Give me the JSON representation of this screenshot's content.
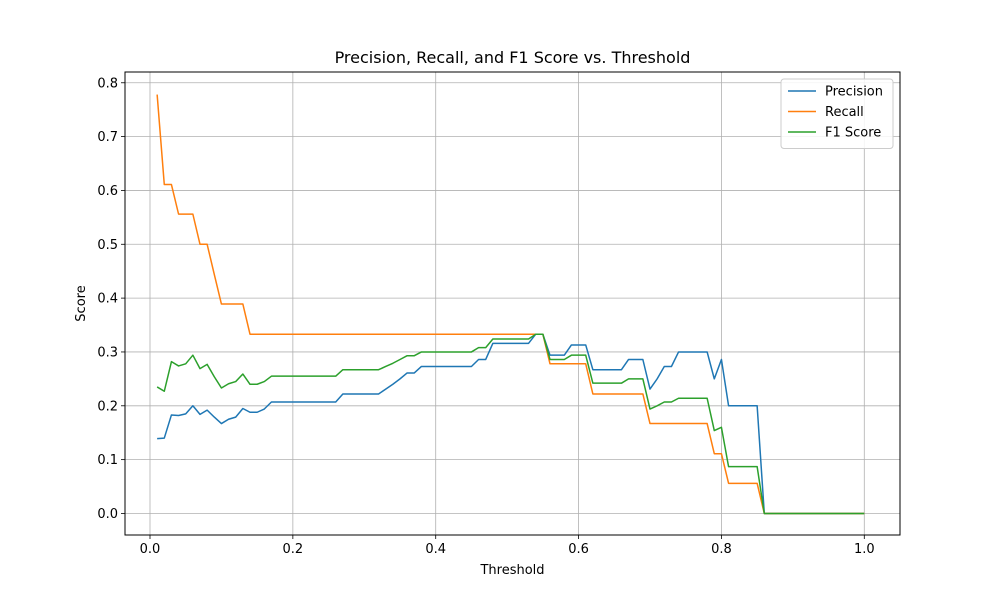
{
  "chart_data": {
    "type": "line",
    "title": "Precision, Recall, and F1 Score vs. Threshold",
    "xlabel": "Threshold",
    "ylabel": "Score",
    "xlim": [
      -0.035,
      1.05
    ],
    "ylim": [
      -0.04,
      0.82
    ],
    "xticks": [
      0.0,
      0.2,
      0.4,
      0.6,
      0.8,
      1.0
    ],
    "xtick_labels": [
      "0.0",
      "0.2",
      "0.4",
      "0.6",
      "0.8",
      "1.0"
    ],
    "yticks": [
      0.0,
      0.1,
      0.2,
      0.3,
      0.4,
      0.5,
      0.6,
      0.7,
      0.8
    ],
    "ytick_labels": [
      "0.0",
      "0.1",
      "0.2",
      "0.3",
      "0.4",
      "0.5",
      "0.6",
      "0.7",
      "0.8"
    ],
    "grid": true,
    "legend_position": "top-right",
    "x": [
      0.01,
      0.02,
      0.03,
      0.04,
      0.05,
      0.06,
      0.07,
      0.08,
      0.09,
      0.1,
      0.11,
      0.12,
      0.13,
      0.14,
      0.15,
      0.16,
      0.17,
      0.18,
      0.19,
      0.2,
      0.21,
      0.22,
      0.23,
      0.24,
      0.25,
      0.26,
      0.27,
      0.28,
      0.29,
      0.3,
      0.31,
      0.32,
      0.33,
      0.34,
      0.35,
      0.36,
      0.37,
      0.38,
      0.39,
      0.4,
      0.41,
      0.42,
      0.43,
      0.44,
      0.45,
      0.46,
      0.47,
      0.48,
      0.49,
      0.5,
      0.51,
      0.52,
      0.53,
      0.54,
      0.55,
      0.56,
      0.57,
      0.58,
      0.59,
      0.6,
      0.61,
      0.62,
      0.63,
      0.64,
      0.65,
      0.66,
      0.67,
      0.68,
      0.69,
      0.7,
      0.71,
      0.72,
      0.73,
      0.74,
      0.75,
      0.76,
      0.77,
      0.78,
      0.79,
      0.8,
      0.81,
      0.82,
      0.83,
      0.84,
      0.85,
      0.86,
      0.87,
      0.88,
      0.89,
      0.9,
      0.91,
      0.92,
      0.93,
      0.94,
      0.95,
      0.96,
      0.97,
      0.98,
      0.99,
      1.0
    ],
    "series": [
      {
        "name": "Precision",
        "color": "#1f77b4",
        "values": [
          0.139,
          0.14,
          0.183,
          0.182,
          0.185,
          0.2,
          0.184,
          0.192,
          0.179,
          0.167,
          0.175,
          0.179,
          0.195,
          0.188,
          0.188,
          0.194,
          0.207,
          0.207,
          0.207,
          0.207,
          0.207,
          0.207,
          0.207,
          0.207,
          0.207,
          0.207,
          0.222,
          0.222,
          0.222,
          0.222,
          0.222,
          0.222,
          0.231,
          0.24,
          0.25,
          0.261,
          0.261,
          0.273,
          0.273,
          0.273,
          0.273,
          0.273,
          0.273,
          0.273,
          0.273,
          0.286,
          0.286,
          0.316,
          0.316,
          0.316,
          0.316,
          0.316,
          0.316,
          0.333,
          0.333,
          0.294,
          0.294,
          0.294,
          0.313,
          0.313,
          0.313,
          0.267,
          0.267,
          0.267,
          0.267,
          0.267,
          0.286,
          0.286,
          0.286,
          0.231,
          0.25,
          0.273,
          0.273,
          0.3,
          0.3,
          0.3,
          0.3,
          0.3,
          0.25,
          0.286,
          0.2,
          0.2,
          0.2,
          0.2,
          0.2,
          0.0,
          0.0,
          0.0,
          0.0,
          0.0,
          0.0,
          0.0,
          0.0,
          0.0,
          0.0,
          0.0,
          0.0,
          0.0,
          0.0,
          0.0
        ]
      },
      {
        "name": "Recall",
        "color": "#ff7f0e",
        "values": [
          0.778,
          0.611,
          0.611,
          0.556,
          0.556,
          0.556,
          0.5,
          0.5,
          0.444,
          0.389,
          0.389,
          0.389,
          0.389,
          0.333,
          0.333,
          0.333,
          0.333,
          0.333,
          0.333,
          0.333,
          0.333,
          0.333,
          0.333,
          0.333,
          0.333,
          0.333,
          0.333,
          0.333,
          0.333,
          0.333,
          0.333,
          0.333,
          0.333,
          0.333,
          0.333,
          0.333,
          0.333,
          0.333,
          0.333,
          0.333,
          0.333,
          0.333,
          0.333,
          0.333,
          0.333,
          0.333,
          0.333,
          0.333,
          0.333,
          0.333,
          0.333,
          0.333,
          0.333,
          0.333,
          0.333,
          0.278,
          0.278,
          0.278,
          0.278,
          0.278,
          0.278,
          0.222,
          0.222,
          0.222,
          0.222,
          0.222,
          0.222,
          0.222,
          0.222,
          0.167,
          0.167,
          0.167,
          0.167,
          0.167,
          0.167,
          0.167,
          0.167,
          0.167,
          0.111,
          0.111,
          0.056,
          0.056,
          0.056,
          0.056,
          0.056,
          0.0,
          0.0,
          0.0,
          0.0,
          0.0,
          0.0,
          0.0,
          0.0,
          0.0,
          0.0,
          0.0,
          0.0,
          0.0,
          0.0,
          0.0
        ]
      },
      {
        "name": "F1 Score",
        "color": "#2ca02c",
        "values": [
          0.235,
          0.227,
          0.282,
          0.274,
          0.278,
          0.294,
          0.269,
          0.277,
          0.254,
          0.233,
          0.241,
          0.245,
          0.259,
          0.24,
          0.24,
          0.245,
          0.255,
          0.255,
          0.255,
          0.255,
          0.255,
          0.255,
          0.255,
          0.255,
          0.255,
          0.255,
          0.267,
          0.267,
          0.267,
          0.267,
          0.267,
          0.267,
          0.273,
          0.279,
          0.286,
          0.293,
          0.293,
          0.3,
          0.3,
          0.3,
          0.3,
          0.3,
          0.3,
          0.3,
          0.3,
          0.308,
          0.308,
          0.324,
          0.324,
          0.324,
          0.324,
          0.324,
          0.324,
          0.333,
          0.333,
          0.286,
          0.286,
          0.286,
          0.294,
          0.294,
          0.294,
          0.242,
          0.242,
          0.242,
          0.242,
          0.242,
          0.25,
          0.25,
          0.25,
          0.194,
          0.2,
          0.207,
          0.207,
          0.214,
          0.214,
          0.214,
          0.214,
          0.214,
          0.154,
          0.16,
          0.087,
          0.087,
          0.087,
          0.087,
          0.087,
          0.0,
          0.0,
          0.0,
          0.0,
          0.0,
          0.0,
          0.0,
          0.0,
          0.0,
          0.0,
          0.0,
          0.0,
          0.0,
          0.0,
          0.0
        ]
      }
    ]
  }
}
